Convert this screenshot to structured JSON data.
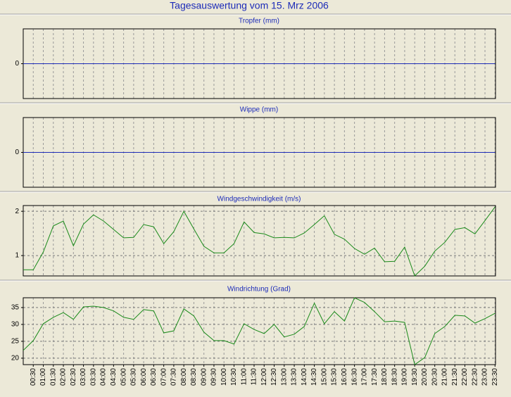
{
  "title": "Tagesauswertung vom 15. Mrz 2006",
  "chart_data": [
    {
      "type": "line",
      "title": "Tropfer (mm)",
      "ylim": [
        -1,
        1
      ],
      "yticks": [
        0
      ],
      "grid": true,
      "color": "#1c2bb8",
      "values": [
        0,
        0,
        0,
        0,
        0,
        0,
        0,
        0,
        0,
        0,
        0,
        0,
        0,
        0,
        0,
        0,
        0,
        0,
        0,
        0,
        0,
        0,
        0,
        0,
        0,
        0,
        0,
        0,
        0,
        0,
        0,
        0,
        0,
        0,
        0,
        0,
        0,
        0,
        0,
        0,
        0,
        0,
        0,
        0,
        0,
        0,
        0,
        0
      ]
    },
    {
      "type": "line",
      "title": "Wippe (mm)",
      "ylim": [
        -1,
        1
      ],
      "yticks": [
        0
      ],
      "grid": true,
      "color": "#1c2bb8",
      "values": [
        0,
        0,
        0,
        0,
        0,
        0,
        0,
        0,
        0,
        0,
        0,
        0,
        0,
        0,
        0,
        0,
        0,
        0,
        0,
        0,
        0,
        0,
        0,
        0,
        0,
        0,
        0,
        0,
        0,
        0,
        0,
        0,
        0,
        0,
        0,
        0,
        0,
        0,
        0,
        0,
        0,
        0,
        0,
        0,
        0,
        0,
        0,
        0
      ]
    },
    {
      "type": "line",
      "title": "Windgeschwindigkeit (m/s)",
      "ylim": [
        0.54,
        2.13
      ],
      "yticks": [
        1,
        2
      ],
      "grid": true,
      "color": "#1a8a1a",
      "values": [
        0.68,
        0.68,
        1.08,
        1.67,
        1.78,
        1.22,
        1.71,
        1.92,
        1.78,
        1.59,
        1.4,
        1.41,
        1.7,
        1.65,
        1.27,
        1.54,
        2.0,
        1.6,
        1.21,
        1.06,
        1.06,
        1.27,
        1.76,
        1.52,
        1.49,
        1.4,
        1.41,
        1.4,
        1.51,
        1.7,
        1.9,
        1.48,
        1.37,
        1.16,
        1.03,
        1.17,
        0.86,
        0.87,
        1.19,
        0.54,
        0.76,
        1.1,
        1.3,
        1.59,
        1.63,
        1.49,
        1.79,
        2.1
      ]
    },
    {
      "type": "line",
      "title": "Windrichtung (Grad)",
      "ylim": [
        18.1,
        37.9
      ],
      "yticks": [
        20,
        25,
        30,
        35
      ],
      "grid": true,
      "color": "#1a8a1a",
      "categories": [
        null,
        "00:30",
        "01:00",
        "01:30",
        "02:00",
        "02:30",
        "03:00",
        "03:30",
        "04:00",
        "04:30",
        "05:00",
        "05:30",
        "06:00",
        "06:30",
        "07:00",
        "07:30",
        "08:00",
        "08:30",
        "09:00",
        "09:30",
        "10:00",
        "10:30",
        "11:00",
        "11:30",
        "12:00",
        "12:30",
        "13:00",
        "13:30",
        "14:00",
        "14:30",
        "15:00",
        "15:30",
        "16:00",
        "16:30",
        "17:00",
        "17:30",
        "18:00",
        "18:30",
        "19:00",
        "19:30",
        "20:00",
        "20:30",
        "21:00",
        "21:30",
        "22:00",
        "22:30",
        "23:00",
        "23:30"
      ],
      "values": [
        22.3,
        25.2,
        30.2,
        32.1,
        33.5,
        31.5,
        35.2,
        35.4,
        35.0,
        34.0,
        32.1,
        31.5,
        34.4,
        34.0,
        27.5,
        28.1,
        34.6,
        32.5,
        27.7,
        25.2,
        25.2,
        24.2,
        30.2,
        28.5,
        27.3,
        30.0,
        26.3,
        27.1,
        29.4,
        36.3,
        30.2,
        33.8,
        31.0,
        37.9,
        36.5,
        33.8,
        30.8,
        31.0,
        30.6,
        18.1,
        20.2,
        27.3,
        29.4,
        32.7,
        32.5,
        30.4,
        31.7,
        33.3
      ]
    }
  ]
}
